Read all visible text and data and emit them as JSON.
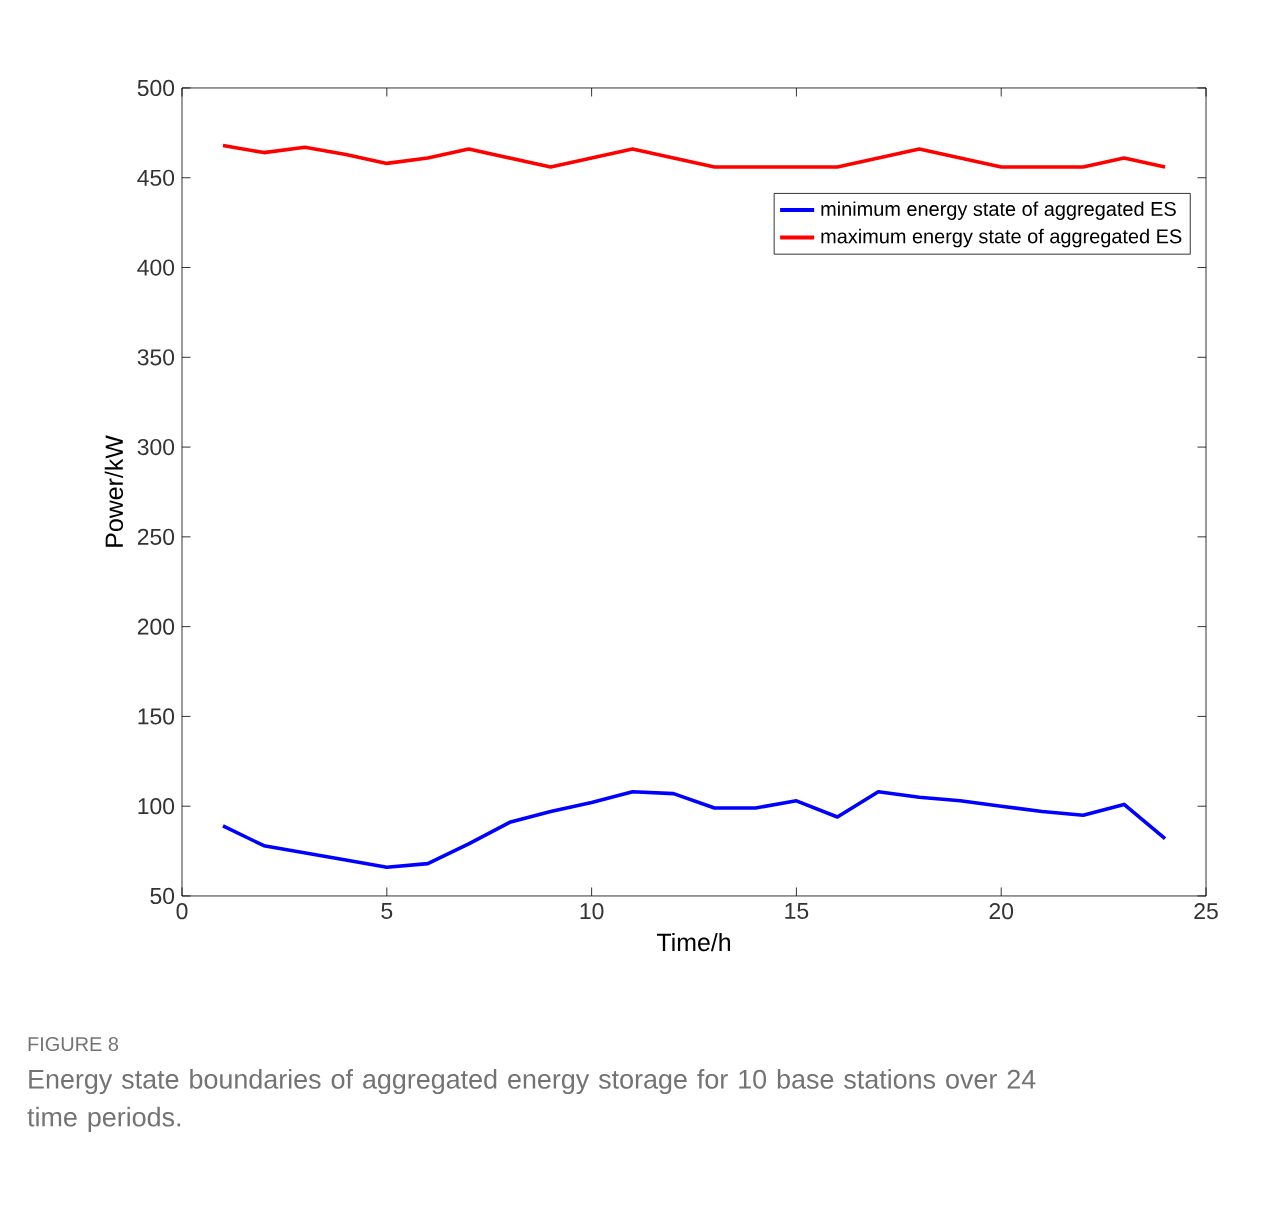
{
  "chart_data": {
    "type": "line",
    "xlabel": "Time/h",
    "ylabel": "Power/kW",
    "x": [
      1,
      2,
      3,
      4,
      5,
      6,
      7,
      8,
      9,
      10,
      11,
      12,
      13,
      14,
      15,
      16,
      17,
      18,
      19,
      20,
      21,
      22,
      23,
      24
    ],
    "series": [
      {
        "name": "minimum energy state of aggregated ES",
        "color": "#0000ff",
        "values": [
          89,
          78,
          74,
          70,
          66,
          68,
          79,
          91,
          97,
          102,
          108,
          107,
          99,
          99,
          103,
          94,
          108,
          105,
          103,
          100,
          97,
          95,
          101,
          82
        ]
      },
      {
        "name": "maximum energy state of aggregated ES",
        "color": "#ff0000",
        "values": [
          468,
          464,
          467,
          463,
          458,
          461,
          466,
          461,
          456,
          461,
          466,
          461,
          456,
          456,
          456,
          456,
          461,
          466,
          461,
          456,
          456,
          456,
          461,
          456
        ]
      }
    ],
    "xlim": [
      0,
      25
    ],
    "xticks": [
      0,
      5,
      10,
      15,
      20,
      25
    ],
    "ylim": [
      50,
      500
    ],
    "yticks": [
      50,
      100,
      150,
      200,
      250,
      300,
      350,
      400,
      450,
      500
    ],
    "legend": "top right",
    "grid": false,
    "marker": "none",
    "line_style": "solid",
    "annotations": [
      "FIGURE 8",
      "Energy state boundaries of aggregated energy storage for 10 base stations over 24 time periods."
    ]
  }
}
